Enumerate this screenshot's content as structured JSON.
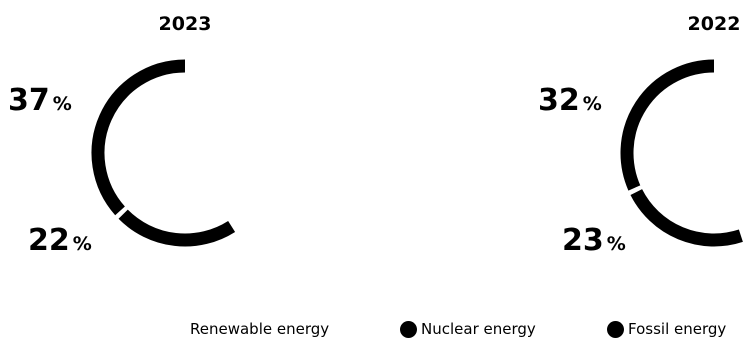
{
  "chart_data": [
    {
      "type": "donut",
      "title": "2023",
      "slices": [
        {
          "name": "Fossil energy",
          "value": 37,
          "label": "37",
          "unit": "%"
        },
        {
          "name": "Nuclear energy",
          "value": 22,
          "label": "22",
          "unit": "%"
        },
        {
          "name": "Renewable energy",
          "value": 41
        }
      ]
    },
    {
      "type": "donut",
      "title": "2022",
      "slices": [
        {
          "name": "Fossil energy",
          "value": 32,
          "label": "32",
          "unit": "%"
        },
        {
          "name": "Nuclear energy",
          "value": 23,
          "label": "23",
          "unit": "%"
        },
        {
          "name": "Renewable energy",
          "value": 45
        }
      ]
    }
  ],
  "legend": [
    {
      "label": "Renewable energy",
      "color": "#ffffff",
      "marker": false
    },
    {
      "label": "Nuclear energy",
      "color": "#000000",
      "marker": true
    },
    {
      "label": "Fossil energy",
      "color": "#000000",
      "marker": true
    }
  ],
  "colors": {
    "slice": "#000000",
    "background": "#ffffff"
  }
}
